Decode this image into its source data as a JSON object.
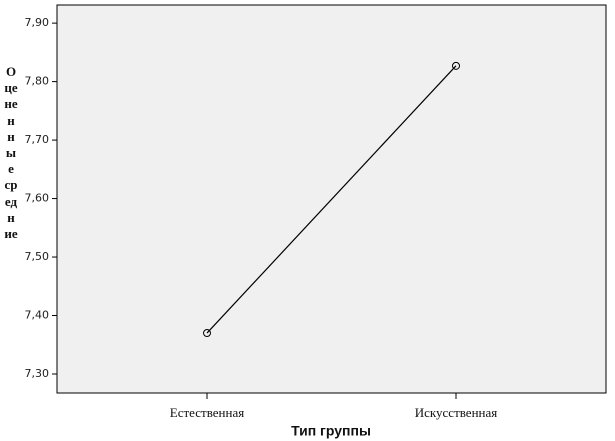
{
  "chart_data": {
    "type": "line",
    "x_label": "Тип группы",
    "y_label": "Оцененные средние",
    "categories": [
      "Естественная",
      "Искусственная"
    ],
    "values": [
      7.37,
      7.827
    ],
    "color": "#000000",
    "ylim": [
      7.2675,
      7.931
    ],
    "yticks": [
      {
        "value": 7.3,
        "label": "7,30"
      },
      {
        "value": 7.4,
        "label": "7,40"
      },
      {
        "value": 7.5,
        "label": "7,50"
      },
      {
        "value": 7.6,
        "label": "7,60"
      },
      {
        "value": 7.7,
        "label": "7,70"
      },
      {
        "value": 7.8,
        "label": "7,80"
      },
      {
        "value": 7.9,
        "label": "7,90"
      }
    ],
    "grid": false,
    "markers": true
  }
}
